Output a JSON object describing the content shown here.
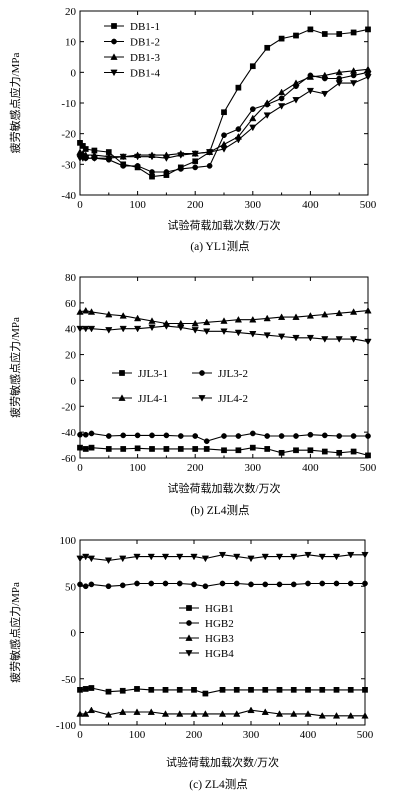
{
  "chart_data": [
    {
      "type": "line",
      "caption": "(a) YL1测点",
      "xlabel": "试验荷载加载次数/万次",
      "ylabel": "疲劳敏感点应力/MPa",
      "xlim": [
        0,
        500
      ],
      "ylim": [
        -40,
        20
      ],
      "xticks": [
        0,
        100,
        200,
        300,
        400,
        500
      ],
      "yticks": [
        -40,
        -30,
        -20,
        -10,
        0,
        10,
        20
      ],
      "legend": "top-left",
      "series": [
        {
          "name": "DB1-1",
          "marker": "square",
          "x": [
            0,
            5,
            10,
            25,
            50,
            75,
            100,
            125,
            150,
            175,
            200,
            225,
            250,
            275,
            300,
            325,
            350,
            375,
            400,
            425,
            450,
            475,
            500
          ],
          "y": [
            -23,
            -24,
            -25,
            -25.5,
            -26,
            -30,
            -31,
            -34,
            -33.5,
            -31,
            -29,
            -26,
            -13,
            -5,
            2,
            8,
            11,
            12,
            14,
            12.5,
            12.5,
            13,
            14
          ]
        },
        {
          "name": "DB1-2",
          "marker": "circle",
          "x": [
            0,
            5,
            10,
            25,
            50,
            75,
            100,
            125,
            150,
            175,
            200,
            225,
            250,
            275,
            300,
            325,
            350,
            375,
            400,
            425,
            450,
            475,
            500
          ],
          "y": [
            -27,
            -27.5,
            -28,
            -28,
            -28.5,
            -30.5,
            -30.5,
            -32.5,
            -32.5,
            -31.5,
            -31,
            -30.5,
            -20.5,
            -18.5,
            -12,
            -10.5,
            -8.5,
            -4.5,
            -1,
            -2,
            -2,
            -1,
            0
          ]
        },
        {
          "name": "DB1-3",
          "marker": "triangle-up",
          "x": [
            0,
            5,
            10,
            25,
            50,
            75,
            100,
            125,
            150,
            175,
            200,
            225,
            250,
            275,
            300,
            325,
            350,
            375,
            400,
            425,
            450,
            475,
            500
          ],
          "y": [
            -26,
            -26.5,
            -27,
            -27,
            -27.5,
            -27.5,
            -27,
            -27,
            -27,
            -26.5,
            -26.5,
            -26,
            -23.5,
            -21,
            -15,
            -10,
            -6.5,
            -3.5,
            -1.5,
            -1,
            0,
            0.5,
            1
          ]
        },
        {
          "name": "DB1-4",
          "marker": "triangle-down",
          "x": [
            0,
            5,
            10,
            25,
            50,
            75,
            100,
            125,
            150,
            175,
            200,
            225,
            250,
            275,
            300,
            325,
            350,
            375,
            400,
            425,
            450,
            475,
            500
          ],
          "y": [
            -28,
            -28,
            -28,
            -28,
            -28,
            -27.5,
            -27.5,
            -27.5,
            -28,
            -27,
            -26.5,
            -26,
            -25,
            -22,
            -18,
            -14,
            -11,
            -9,
            -6,
            -7,
            -3.5,
            -3.5,
            -1.5
          ]
        }
      ]
    },
    {
      "type": "line",
      "caption": "(b) ZL4测点",
      "xlabel": "试验荷载加载次数/万次",
      "ylabel": "疲劳敏感点应力/MPa",
      "xlim": [
        0,
        500
      ],
      "ylim": [
        -60,
        80
      ],
      "xticks": [
        0,
        100,
        200,
        300,
        400,
        500
      ],
      "yticks": [
        -60,
        -40,
        -20,
        0,
        20,
        40,
        60,
        80
      ],
      "legend": "center",
      "series": [
        {
          "name": "JJL3-1",
          "marker": "square",
          "x": [
            0,
            10,
            20,
            50,
            75,
            100,
            125,
            150,
            175,
            200,
            220,
            250,
            275,
            300,
            325,
            350,
            375,
            400,
            425,
            450,
            475,
            500
          ],
          "y": [
            -52,
            -53,
            -52,
            -53,
            -53,
            -52.5,
            -53,
            -53,
            -53,
            -53,
            -53,
            -54,
            -54,
            -52,
            -53,
            -56,
            -54,
            -54,
            -55,
            -56,
            -55,
            -58
          ]
        },
        {
          "name": "JJL3-2",
          "marker": "circle",
          "x": [
            0,
            10,
            20,
            50,
            75,
            100,
            125,
            150,
            175,
            200,
            220,
            250,
            275,
            300,
            325,
            350,
            375,
            400,
            425,
            450,
            475,
            500
          ],
          "y": [
            -42,
            -42,
            -41,
            -43,
            -42.5,
            -42.5,
            -42.5,
            -42.5,
            -43,
            -43,
            -47,
            -43,
            -43,
            -41,
            -43,
            -43,
            -43,
            -42,
            -42.5,
            -43,
            -43,
            -43
          ]
        },
        {
          "name": "JJL4-1",
          "marker": "triangle-up",
          "x": [
            0,
            10,
            20,
            50,
            75,
            100,
            125,
            150,
            175,
            200,
            220,
            250,
            275,
            300,
            325,
            350,
            375,
            400,
            425,
            450,
            475,
            500
          ],
          "y": [
            53,
            54,
            53,
            51,
            50,
            48,
            46,
            44,
            44,
            44,
            45,
            46,
            47,
            47,
            48,
            49,
            49,
            50,
            51,
            52,
            53,
            54
          ]
        },
        {
          "name": "JJL4-2",
          "marker": "triangle-down",
          "x": [
            0,
            10,
            20,
            50,
            75,
            100,
            125,
            150,
            175,
            200,
            220,
            250,
            275,
            300,
            325,
            350,
            375,
            400,
            425,
            450,
            475,
            500
          ],
          "y": [
            40,
            40,
            40,
            39,
            40,
            40,
            41,
            42,
            41,
            39,
            38,
            38,
            37,
            36,
            35,
            34,
            33,
            33,
            32,
            32,
            32,
            30
          ]
        }
      ]
    },
    {
      "type": "line",
      "caption": "(c) ZL4测点",
      "xlabel": "试验荷载加载次数/万次",
      "ylabel": "疲劳敏感点应力/MPa",
      "xlim": [
        0,
        500
      ],
      "ylim": [
        -100,
        100
      ],
      "xticks": [
        0,
        100,
        200,
        300,
        400,
        500
      ],
      "yticks": [
        -100,
        -50,
        0,
        50,
        100
      ],
      "legend": "center",
      "series": [
        {
          "name": "HGB1",
          "marker": "square",
          "x": [
            0,
            10,
            20,
            50,
            75,
            100,
            125,
            150,
            175,
            200,
            220,
            250,
            275,
            300,
            325,
            350,
            375,
            400,
            425,
            450,
            475,
            500
          ],
          "y": [
            -62,
            -61,
            -60,
            -64,
            -63,
            -61,
            -62,
            -62,
            -62,
            -62,
            -66,
            -62,
            -62,
            -62,
            -62,
            -62,
            -62,
            -62,
            -62,
            -62,
            -62,
            -62
          ]
        },
        {
          "name": "HGB2",
          "marker": "circle",
          "x": [
            0,
            10,
            20,
            50,
            75,
            100,
            125,
            150,
            175,
            200,
            220,
            250,
            275,
            300,
            325,
            350,
            375,
            400,
            425,
            450,
            475,
            500
          ],
          "y": [
            52,
            50,
            52,
            50,
            51,
            53,
            53,
            53,
            53,
            52,
            50,
            53,
            53,
            52,
            52,
            52,
            52,
            53,
            53,
            53,
            53,
            53
          ]
        },
        {
          "name": "HGB3",
          "marker": "triangle-up",
          "x": [
            0,
            10,
            20,
            50,
            75,
            100,
            125,
            150,
            175,
            200,
            220,
            250,
            275,
            300,
            325,
            350,
            375,
            400,
            425,
            450,
            475,
            500
          ],
          "y": [
            -88,
            -88,
            -84,
            -89,
            -86,
            -86,
            -86,
            -88,
            -88,
            -88,
            -88,
            -88,
            -88,
            -84,
            -86,
            -88,
            -88,
            -88,
            -90,
            -90,
            -90,
            -90
          ]
        },
        {
          "name": "HGB4",
          "marker": "triangle-down",
          "x": [
            0,
            10,
            20,
            50,
            75,
            100,
            125,
            150,
            175,
            200,
            220,
            250,
            275,
            300,
            325,
            350,
            375,
            400,
            425,
            450,
            475,
            500
          ],
          "y": [
            80,
            82,
            80,
            78,
            80,
            82,
            82,
            82,
            82,
            82,
            80,
            84,
            82,
            80,
            82,
            82,
            82,
            84,
            82,
            82,
            84,
            84
          ]
        }
      ]
    }
  ]
}
